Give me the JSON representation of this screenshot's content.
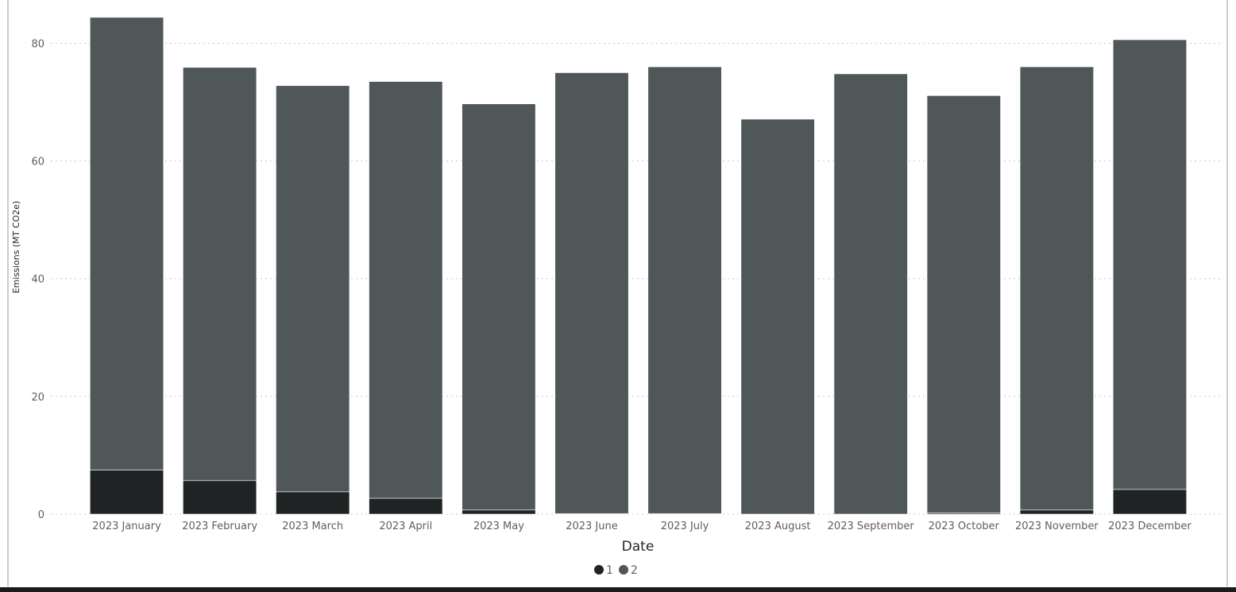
{
  "chart_data": {
    "type": "bar",
    "stacked": true,
    "title": "",
    "xlabel": "Date",
    "ylabel": "Emissions (MT CO2e)",
    "ylim": [
      0,
      86
    ],
    "yticks": [
      0,
      20,
      40,
      60,
      80
    ],
    "grid": true,
    "legend_position": "bottom-center",
    "categories": [
      "2023 January",
      "2023 February",
      "2023 March",
      "2023 April",
      "2023 May",
      "2023 June",
      "2023 July",
      "2023 August",
      "2023 September",
      "2023 October",
      "2023 November",
      "2023 December"
    ],
    "series": [
      {
        "name": "1",
        "color": "#1f2323",
        "values": [
          7.5,
          5.7,
          3.8,
          2.7,
          0.7,
          0.1,
          0.1,
          0.0,
          0.0,
          0.2,
          0.7,
          4.2
        ]
      },
      {
        "name": "2",
        "color": "#4f5759",
        "values": [
          76.9,
          70.2,
          69.0,
          70.8,
          69.0,
          74.9,
          75.9,
          67.1,
          74.8,
          70.9,
          75.3,
          76.4
        ]
      }
    ]
  }
}
